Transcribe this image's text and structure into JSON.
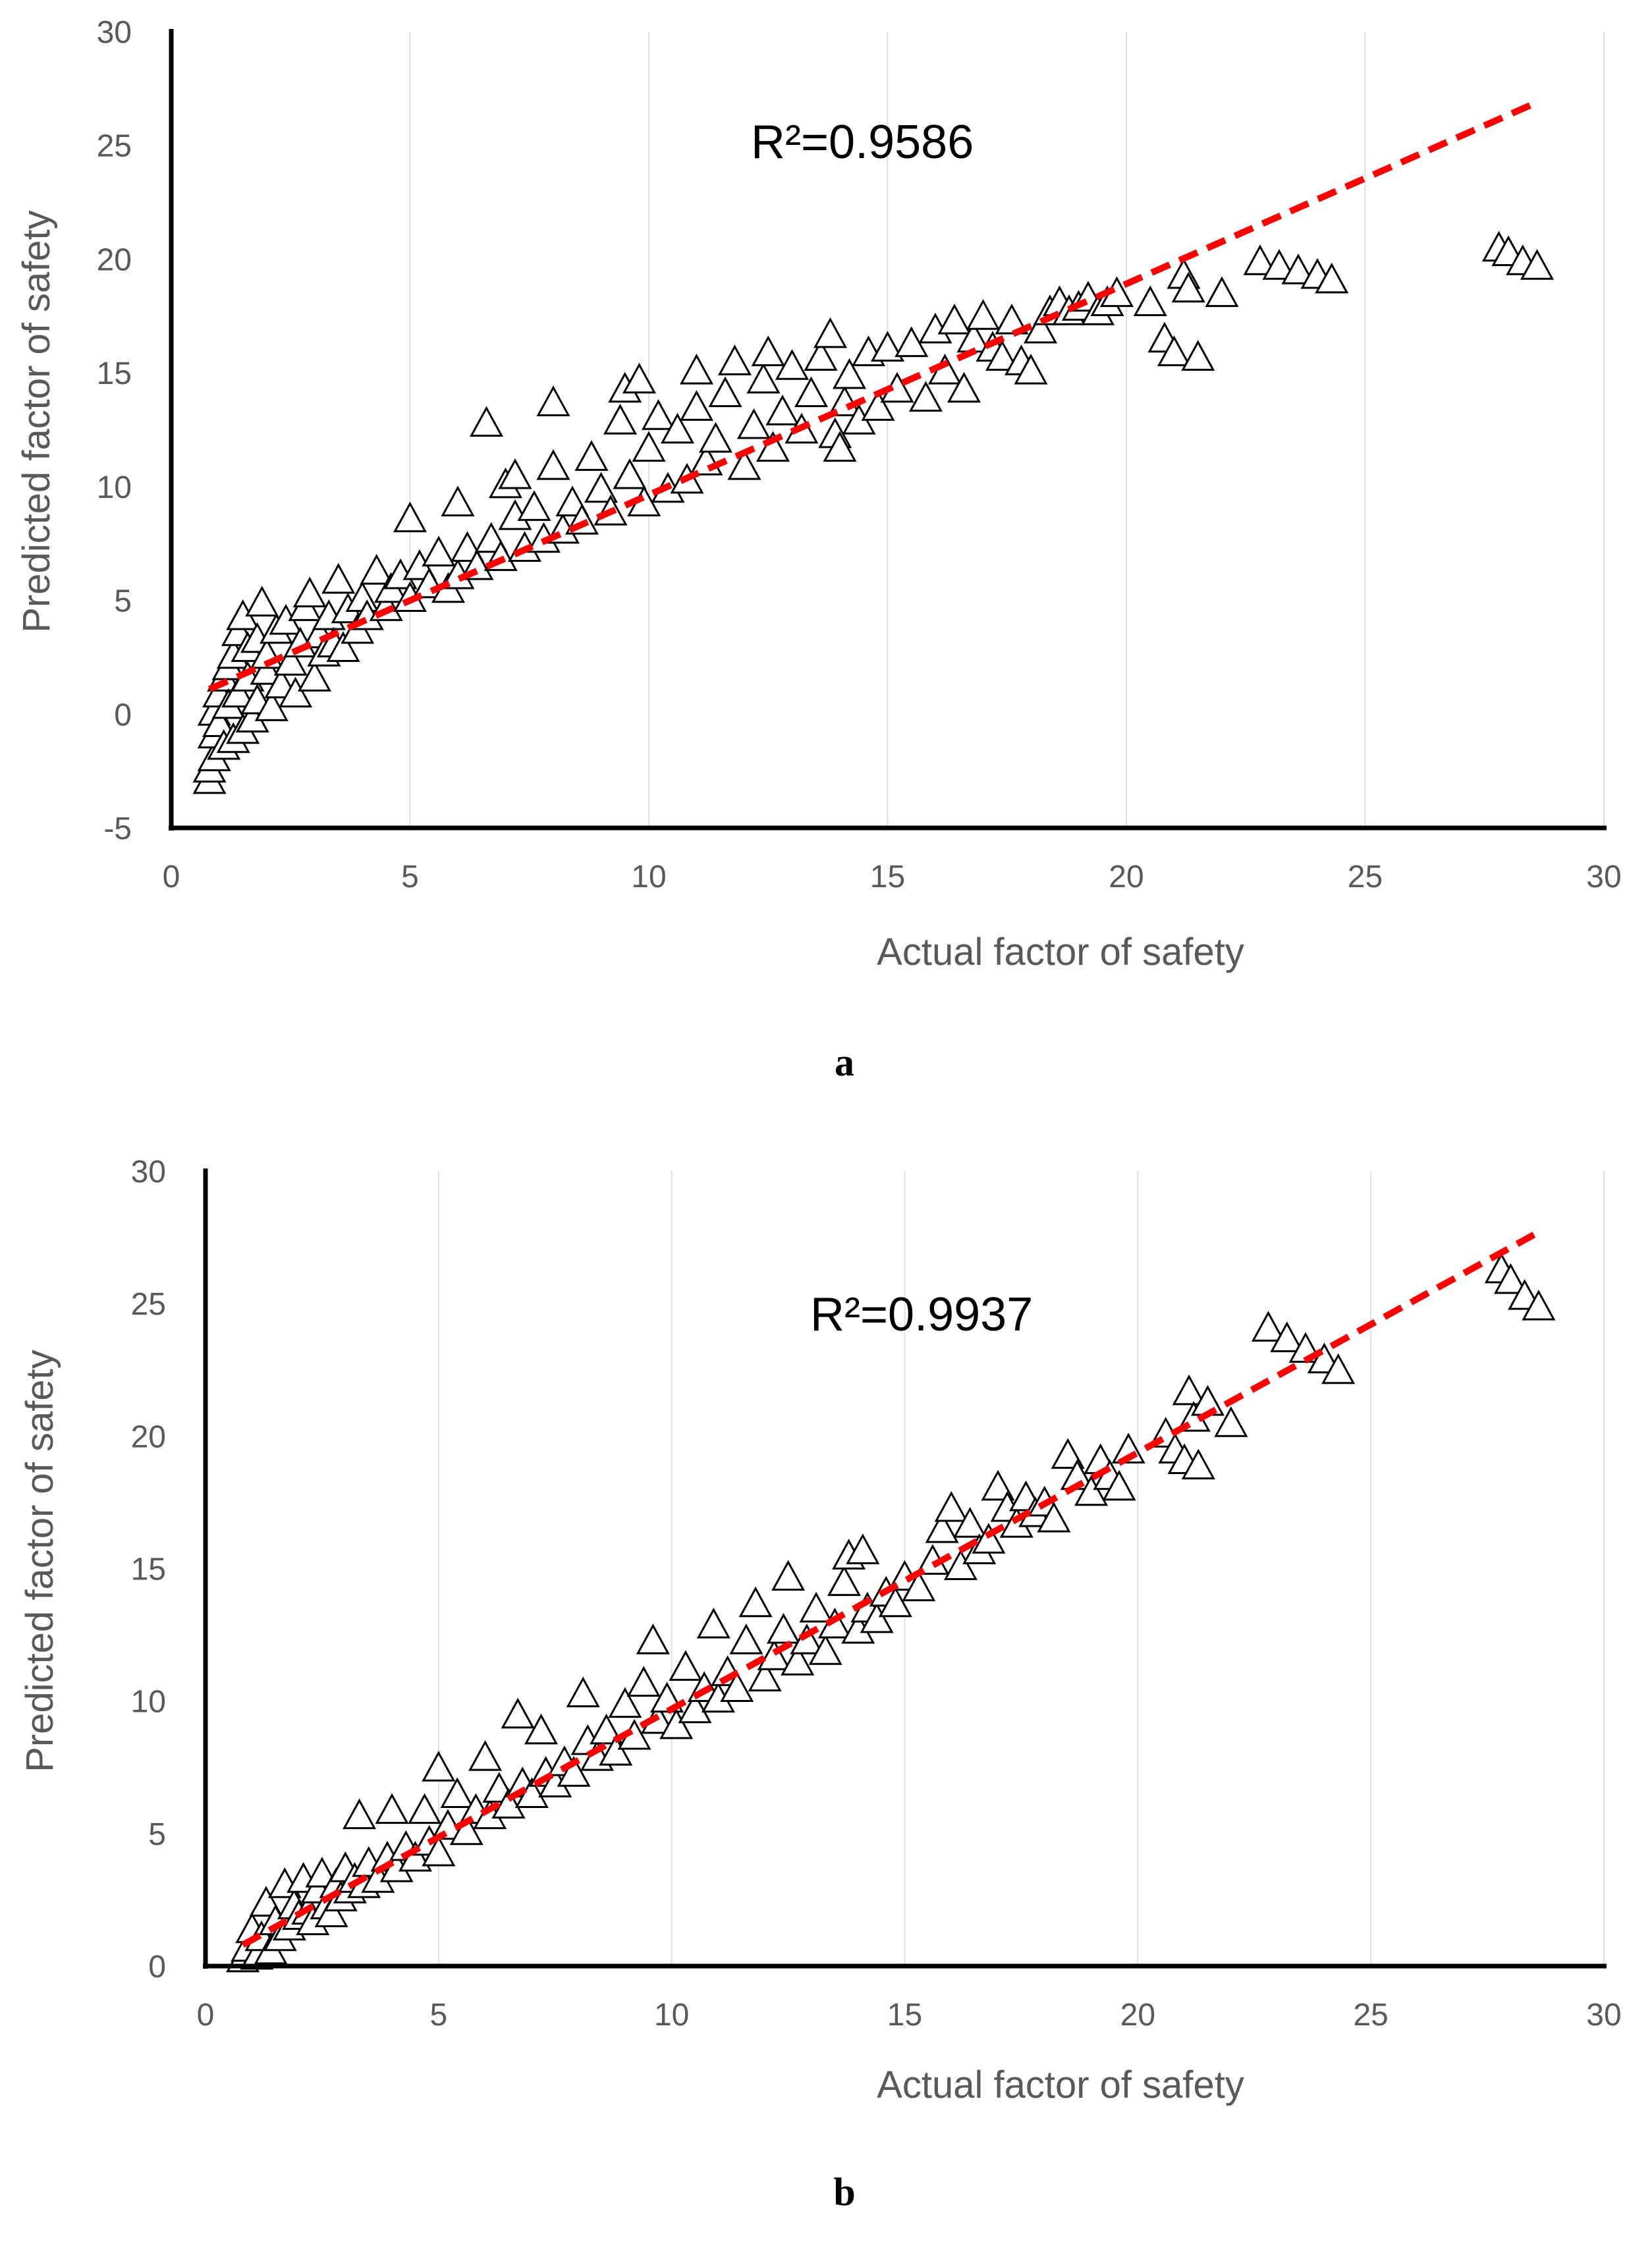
{
  "chart_data": [
    {
      "type": "scatter",
      "panel_label": "a",
      "xlabel": "Actual factor of safety",
      "ylabel": "Predicted factor of safety",
      "xlim": [
        0,
        30
      ],
      "ylim": [
        -5,
        30
      ],
      "xticks": [
        "0",
        "5",
        "10",
        "15",
        "20",
        "25",
        "30"
      ],
      "yticks": [
        "-5",
        "0",
        "5",
        "10",
        "15",
        "20",
        "25",
        "30"
      ],
      "annotation": "R²=0.9586",
      "grid": "vertical",
      "marker": "open-triangle",
      "trendline": {
        "x": [
          0.8,
          28.5
        ],
        "y": [
          1.1,
          26.8
        ],
        "color": "#ff0000",
        "style": "dashed"
      },
      "points": [
        [
          0.8,
          -3.0
        ],
        [
          0.8,
          -2.5
        ],
        [
          0.9,
          -2.0
        ],
        [
          0.9,
          -1.0
        ],
        [
          0.9,
          0.0
        ],
        [
          1.0,
          0.8
        ],
        [
          1.0,
          -0.5
        ],
        [
          1.1,
          1.5
        ],
        [
          1.1,
          -1.5
        ],
        [
          1.2,
          0.3
        ],
        [
          1.2,
          2.0
        ],
        [
          1.3,
          -1.2
        ],
        [
          1.3,
          2.5
        ],
        [
          1.4,
          0.8
        ],
        [
          1.4,
          3.5
        ],
        [
          1.5,
          -0.8
        ],
        [
          1.5,
          4.2
        ],
        [
          1.6,
          1.5
        ],
        [
          1.6,
          2.8
        ],
        [
          1.7,
          -0.3
        ],
        [
          1.8,
          3.2
        ],
        [
          1.8,
          0.5
        ],
        [
          1.9,
          4.8
        ],
        [
          2.0,
          1.8
        ],
        [
          2.0,
          2.5
        ],
        [
          2.1,
          0.2
        ],
        [
          2.2,
          3.6
        ],
        [
          2.3,
          1.2
        ],
        [
          2.4,
          4.0
        ],
        [
          2.5,
          2.2
        ],
        [
          2.6,
          0.8
        ],
        [
          2.7,
          3.0
        ],
        [
          2.8,
          4.6
        ],
        [
          2.9,
          5.2
        ],
        [
          3.0,
          1.5
        ],
        [
          3.1,
          3.4
        ],
        [
          3.2,
          2.6
        ],
        [
          3.3,
          4.2
        ],
        [
          3.4,
          3.0
        ],
        [
          3.5,
          5.8
        ],
        [
          3.6,
          2.8
        ],
        [
          3.7,
          4.5
        ],
        [
          3.9,
          3.6
        ],
        [
          4.0,
          5.0
        ],
        [
          4.1,
          4.2
        ],
        [
          4.3,
          6.2
        ],
        [
          4.5,
          4.6
        ],
        [
          4.6,
          5.4
        ],
        [
          4.8,
          6.0
        ],
        [
          5.0,
          8.5
        ],
        [
          5.0,
          5.0
        ],
        [
          5.2,
          6.4
        ],
        [
          5.4,
          5.6
        ],
        [
          5.6,
          7.0
        ],
        [
          5.8,
          5.4
        ],
        [
          6.0,
          9.2
        ],
        [
          6.0,
          6.0
        ],
        [
          6.2,
          7.2
        ],
        [
          6.4,
          6.4
        ],
        [
          6.6,
          12.7
        ],
        [
          6.7,
          7.6
        ],
        [
          6.9,
          6.8
        ],
        [
          7.0,
          10.0
        ],
        [
          7.2,
          10.4
        ],
        [
          7.2,
          8.6
        ],
        [
          7.4,
          7.2
        ],
        [
          7.6,
          9.0
        ],
        [
          7.8,
          7.6
        ],
        [
          8.0,
          10.8
        ],
        [
          8.0,
          13.6
        ],
        [
          8.2,
          8.0
        ],
        [
          8.4,
          9.2
        ],
        [
          8.6,
          8.4
        ],
        [
          8.8,
          11.2
        ],
        [
          9.0,
          9.8
        ],
        [
          9.2,
          8.8
        ],
        [
          9.4,
          12.8
        ],
        [
          9.5,
          14.2
        ],
        [
          9.6,
          10.4
        ],
        [
          9.8,
          14.6
        ],
        [
          9.9,
          9.2
        ],
        [
          10.0,
          11.6
        ],
        [
          10.2,
          13.0
        ],
        [
          10.4,
          9.8
        ],
        [
          10.6,
          12.4
        ],
        [
          10.8,
          10.2
        ],
        [
          11.0,
          15.0
        ],
        [
          11.0,
          13.4
        ],
        [
          11.2,
          11.0
        ],
        [
          11.4,
          12.0
        ],
        [
          11.6,
          14.0
        ],
        [
          11.8,
          15.4
        ],
        [
          12.0,
          10.8
        ],
        [
          12.2,
          12.6
        ],
        [
          12.4,
          14.6
        ],
        [
          12.5,
          15.8
        ],
        [
          12.6,
          11.6
        ],
        [
          12.8,
          13.2
        ],
        [
          13.0,
          15.2
        ],
        [
          13.2,
          12.4
        ],
        [
          13.4,
          14.0
        ],
        [
          13.6,
          15.6
        ],
        [
          13.8,
          16.6
        ],
        [
          13.9,
          12.2
        ],
        [
          14.0,
          11.6
        ],
        [
          14.1,
          13.6
        ],
        [
          14.2,
          14.8
        ],
        [
          14.4,
          12.8
        ],
        [
          14.6,
          15.8
        ],
        [
          14.8,
          13.4
        ],
        [
          15.0,
          16.0
        ],
        [
          15.2,
          14.2
        ],
        [
          15.5,
          16.2
        ],
        [
          15.8,
          13.8
        ],
        [
          16.0,
          16.8
        ],
        [
          16.2,
          15.0
        ],
        [
          16.4,
          17.2
        ],
        [
          16.6,
          14.2
        ],
        [
          16.8,
          16.4
        ],
        [
          17.0,
          17.4
        ],
        [
          17.2,
          16.0
        ],
        [
          17.4,
          15.6
        ],
        [
          17.6,
          17.2
        ],
        [
          17.8,
          15.4
        ],
        [
          18.0,
          15.0
        ],
        [
          18.2,
          16.8
        ],
        [
          18.4,
          17.6
        ],
        [
          18.6,
          18.0
        ],
        [
          18.8,
          17.6
        ],
        [
          19.0,
          17.8
        ],
        [
          19.2,
          18.2
        ],
        [
          19.4,
          17.6
        ],
        [
          19.6,
          18.0
        ],
        [
          19.8,
          18.4
        ],
        [
          20.5,
          18.0
        ],
        [
          20.8,
          16.4
        ],
        [
          21.0,
          15.8
        ],
        [
          21.2,
          19.2
        ],
        [
          21.3,
          18.6
        ],
        [
          21.5,
          15.6
        ],
        [
          22.0,
          18.4
        ],
        [
          22.8,
          19.8
        ],
        [
          23.2,
          19.6
        ],
        [
          23.6,
          19.4
        ],
        [
          24.0,
          19.2
        ],
        [
          24.3,
          19.0
        ],
        [
          27.8,
          20.4
        ],
        [
          28.0,
          20.2
        ],
        [
          28.3,
          19.8
        ],
        [
          28.6,
          19.6
        ]
      ]
    },
    {
      "type": "scatter",
      "panel_label": "b",
      "xlabel": "Actual factor of safety",
      "ylabel": "Predicted  factor of safety",
      "xlim": [
        0,
        30
      ],
      "ylim": [
        0,
        30
      ],
      "xticks": [
        "0",
        "5",
        "10",
        "15",
        "20",
        "25",
        "30"
      ],
      "yticks": [
        "0",
        "5",
        "10",
        "15",
        "20",
        "25",
        "30"
      ],
      "annotation": "R²=0.9937",
      "grid": "vertical",
      "marker": "open-triangle",
      "trendline": {
        "x": [
          0.8,
          28.5
        ],
        "y": [
          0.8,
          27.6
        ],
        "color": "#ff0000",
        "style": "dashed"
      },
      "points": [
        [
          0.8,
          0.2
        ],
        [
          0.9,
          0.6
        ],
        [
          1.0,
          1.3
        ],
        [
          1.1,
          0.3
        ],
        [
          1.2,
          1.0
        ],
        [
          1.3,
          2.3
        ],
        [
          1.4,
          0.5
        ],
        [
          1.5,
          1.6
        ],
        [
          1.6,
          1.0
        ],
        [
          1.7,
          3.0
        ],
        [
          1.8,
          1.4
        ],
        [
          1.9,
          2.2
        ],
        [
          2.0,
          1.8
        ],
        [
          2.1,
          3.2
        ],
        [
          2.2,
          2.0
        ],
        [
          2.3,
          1.6
        ],
        [
          2.4,
          2.8
        ],
        [
          2.5,
          3.4
        ],
        [
          2.6,
          2.2
        ],
        [
          2.7,
          1.9
        ],
        [
          2.8,
          3.0
        ],
        [
          2.9,
          2.5
        ],
        [
          3.0,
          3.6
        ],
        [
          3.1,
          2.8
        ],
        [
          3.2,
          3.2
        ],
        [
          3.3,
          5.6
        ],
        [
          3.4,
          3.0
        ],
        [
          3.5,
          3.8
        ],
        [
          3.7,
          3.2
        ],
        [
          3.9,
          4.0
        ],
        [
          4.0,
          5.8
        ],
        [
          4.1,
          3.6
        ],
        [
          4.3,
          4.4
        ],
        [
          4.5,
          4.0
        ],
        [
          4.7,
          5.8
        ],
        [
          4.8,
          4.6
        ],
        [
          5.0,
          7.4
        ],
        [
          5.0,
          4.2
        ],
        [
          5.2,
          5.2
        ],
        [
          5.4,
          6.4
        ],
        [
          5.6,
          5.0
        ],
        [
          5.8,
          5.8
        ],
        [
          6.0,
          7.8
        ],
        [
          6.1,
          5.6
        ],
        [
          6.3,
          6.6
        ],
        [
          6.5,
          6.0
        ],
        [
          6.7,
          9.4
        ],
        [
          6.8,
          6.8
        ],
        [
          7.0,
          6.4
        ],
        [
          7.2,
          8.8
        ],
        [
          7.3,
          7.2
        ],
        [
          7.5,
          6.8
        ],
        [
          7.7,
          7.6
        ],
        [
          7.9,
          7.2
        ],
        [
          8.1,
          10.2
        ],
        [
          8.2,
          8.4
        ],
        [
          8.4,
          7.8
        ],
        [
          8.6,
          8.8
        ],
        [
          8.8,
          8.0
        ],
        [
          9.0,
          9.8
        ],
        [
          9.2,
          8.6
        ],
        [
          9.4,
          10.6
        ],
        [
          9.6,
          12.2
        ],
        [
          9.7,
          9.2
        ],
        [
          9.9,
          10.0
        ],
        [
          10.1,
          9.0
        ],
        [
          10.3,
          11.2
        ],
        [
          10.5,
          9.6
        ],
        [
          10.7,
          10.4
        ],
        [
          10.9,
          12.8
        ],
        [
          11.0,
          10.0
        ],
        [
          11.2,
          11.0
        ],
        [
          11.4,
          10.4
        ],
        [
          11.6,
          12.2
        ],
        [
          11.8,
          13.6
        ],
        [
          12.0,
          10.8
        ],
        [
          12.2,
          11.6
        ],
        [
          12.4,
          12.6
        ],
        [
          12.5,
          14.6
        ],
        [
          12.7,
          11.4
        ],
        [
          12.9,
          12.2
        ],
        [
          13.1,
          13.4
        ],
        [
          13.3,
          11.8
        ],
        [
          13.5,
          12.8
        ],
        [
          13.7,
          14.4
        ],
        [
          13.8,
          15.4
        ],
        [
          14.0,
          12.6
        ],
        [
          14.1,
          15.6
        ],
        [
          14.2,
          13.4
        ],
        [
          14.4,
          13.0
        ],
        [
          14.6,
          14.0
        ],
        [
          14.8,
          13.6
        ],
        [
          15.0,
          14.6
        ],
        [
          15.3,
          14.2
        ],
        [
          15.6,
          15.2
        ],
        [
          15.8,
          16.4
        ],
        [
          16.0,
          17.2
        ],
        [
          16.2,
          15.0
        ],
        [
          16.4,
          16.6
        ],
        [
          16.6,
          15.6
        ],
        [
          16.8,
          16.0
        ],
        [
          17.0,
          18.0
        ],
        [
          17.2,
          17.2
        ],
        [
          17.4,
          16.6
        ],
        [
          17.6,
          17.6
        ],
        [
          17.8,
          17.0
        ],
        [
          18.0,
          17.4
        ],
        [
          18.2,
          16.8
        ],
        [
          18.5,
          19.2
        ],
        [
          18.7,
          18.4
        ],
        [
          19.0,
          17.8
        ],
        [
          19.2,
          19.0
        ],
        [
          19.4,
          18.4
        ],
        [
          19.6,
          18.0
        ],
        [
          19.8,
          19.4
        ],
        [
          20.6,
          20.0
        ],
        [
          20.8,
          19.4
        ],
        [
          21.0,
          19.0
        ],
        [
          21.1,
          21.6
        ],
        [
          21.2,
          20.6
        ],
        [
          21.3,
          18.8
        ],
        [
          21.5,
          21.2
        ],
        [
          22.0,
          20.4
        ],
        [
          22.8,
          24.0
        ],
        [
          23.2,
          23.6
        ],
        [
          23.6,
          23.2
        ],
        [
          24.0,
          22.8
        ],
        [
          24.3,
          22.4
        ],
        [
          27.8,
          26.2
        ],
        [
          28.0,
          25.8
        ],
        [
          28.3,
          25.2
        ],
        [
          28.6,
          24.8
        ]
      ]
    }
  ]
}
